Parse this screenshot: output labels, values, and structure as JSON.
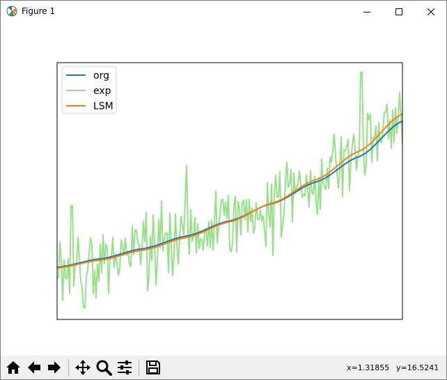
{
  "window": {
    "title": "Figure 1",
    "icon": "matplotlib-icon",
    "controls": [
      "minimize-icon",
      "maximize-icon",
      "close-icon"
    ]
  },
  "toolbar": {
    "buttons": [
      "home-icon",
      "back-arrow-icon",
      "forward-arrow-icon",
      "pan-icon",
      "zoom-icon",
      "configure-subplots-icon",
      "save-icon"
    ],
    "coord_x": "x=1.31855",
    "coord_y": "y=16.5241"
  },
  "chart_data": {
    "type": "line",
    "title": "",
    "xlabel": "",
    "ylabel": "",
    "xlim": [
      0,
      496
    ],
    "ylim": [
      0,
      100
    ],
    "grid": false,
    "ticks_visible": false,
    "legend_position": "upper-left",
    "series": [
      {
        "name": "org",
        "color": "#1f77b4",
        "kind": "curve",
        "x": [
          0,
          62,
          124,
          186,
          248,
          310,
          372,
          434,
          496
        ],
        "y": [
          20.3,
          23.6,
          27.6,
          32.5,
          38.4,
          45.2,
          53.5,
          63.4,
          77.2
        ]
      },
      {
        "name": "exp",
        "color": "#98df8a",
        "kind": "noisy-curve",
        "base_x": [
          0,
          62,
          124,
          186,
          248,
          310,
          372,
          434,
          496
        ],
        "base_y": [
          20.0,
          23.1,
          27.0,
          31.9,
          38.0,
          45.4,
          54.4,
          65.5,
          80.0
        ],
        "noise_amplitude": 10,
        "peaks": [
          {
            "x": 21,
            "y": 44.4
          },
          {
            "x": 186,
            "y": 60.0
          },
          {
            "x": 437,
            "y": 96.3
          }
        ],
        "troughs": [
          {
            "x": 39,
            "y": 4.6
          },
          {
            "x": 310,
            "y": 25.0
          }
        ]
      },
      {
        "name": "LSM",
        "color": "#ff7f0e",
        "kind": "curve",
        "x": [
          0,
          62,
          124,
          186,
          248,
          310,
          372,
          434,
          496
        ],
        "y": [
          20.0,
          23.1,
          27.0,
          31.9,
          38.0,
          45.4,
          54.4,
          65.5,
          80.0
        ]
      }
    ]
  }
}
